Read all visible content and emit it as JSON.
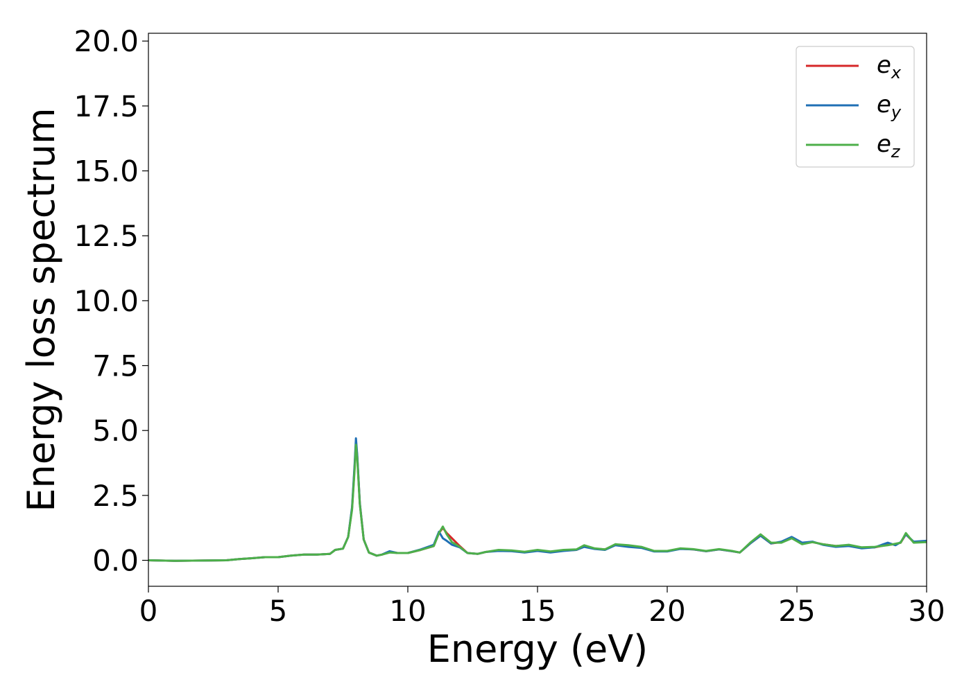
{
  "chart_data": {
    "type": "line",
    "xlabel": "Energy (eV)",
    "ylabel": "Energy loss spectrum",
    "xlim": [
      0,
      30
    ],
    "ylim": [
      -1,
      20.3
    ],
    "xticks": [
      0,
      5,
      10,
      15,
      20,
      25,
      30
    ],
    "xtick_labels": [
      "0",
      "5",
      "10",
      "15",
      "20",
      "25",
      "30"
    ],
    "yticks": [
      0,
      2.5,
      5,
      7.5,
      10,
      12.5,
      15,
      17.5,
      20
    ],
    "ytick_labels": [
      "0.0",
      "2.5",
      "5.0",
      "7.5",
      "10.0",
      "12.5",
      "15.0",
      "17.5",
      "20.0"
    ],
    "grid": false,
    "legend_position": "top-right",
    "x": [
      0,
      1,
      2,
      3,
      3.5,
      4,
      4.5,
      5,
      5.5,
      6,
      6.5,
      7,
      7.2,
      7.5,
      7.7,
      7.85,
      7.95,
      8.0,
      8.05,
      8.15,
      8.3,
      8.5,
      8.8,
      9.0,
      9.3,
      9.6,
      10.0,
      10.5,
      11.0,
      11.2,
      11.35,
      11.5,
      11.7,
      12.0,
      12.3,
      12.7,
      13.0,
      13.5,
      14.0,
      14.5,
      15.0,
      15.5,
      16.0,
      16.5,
      16.8,
      17.2,
      17.6,
      18.0,
      18.5,
      19.0,
      19.5,
      20.0,
      20.5,
      21.0,
      21.5,
      22.0,
      22.5,
      22.8,
      23.2,
      23.6,
      24.0,
      24.4,
      24.8,
      25.2,
      25.6,
      26.0,
      26.5,
      27.0,
      27.5,
      28.0,
      28.5,
      28.8,
      29.0,
      29.2,
      29.5,
      30.0
    ],
    "series": [
      {
        "name": "e_x",
        "label_base": "e",
        "label_sub": "x",
        "color": "#d62728",
        "values": [
          0.0,
          -0.02,
          -0.01,
          0.0,
          0.05,
          0.08,
          0.12,
          0.12,
          0.18,
          0.22,
          0.22,
          0.25,
          0.4,
          0.45,
          0.9,
          2.0,
          3.6,
          4.55,
          4.0,
          2.2,
          0.8,
          0.3,
          0.18,
          0.22,
          0.33,
          0.28,
          0.28,
          0.4,
          0.55,
          1.05,
          1.25,
          1.05,
          0.85,
          0.55,
          0.28,
          0.25,
          0.32,
          0.38,
          0.36,
          0.32,
          0.38,
          0.33,
          0.38,
          0.4,
          0.55,
          0.45,
          0.42,
          0.6,
          0.55,
          0.5,
          0.35,
          0.35,
          0.45,
          0.42,
          0.35,
          0.42,
          0.35,
          0.3,
          0.65,
          0.95,
          0.65,
          0.7,
          0.85,
          0.65,
          0.7,
          0.62,
          0.55,
          0.58,
          0.48,
          0.5,
          0.6,
          0.62,
          0.68,
          1.0,
          0.7,
          0.72
        ]
      },
      {
        "name": "e_y",
        "label_base": "e",
        "label_sub": "y",
        "color": "#1f6fb4",
        "values": [
          0.0,
          -0.02,
          -0.01,
          0.0,
          0.05,
          0.08,
          0.12,
          0.12,
          0.18,
          0.22,
          0.22,
          0.25,
          0.4,
          0.45,
          0.9,
          2.05,
          3.7,
          4.7,
          4.05,
          2.2,
          0.8,
          0.3,
          0.18,
          0.22,
          0.35,
          0.28,
          0.28,
          0.42,
          0.6,
          1.1,
          0.85,
          0.75,
          0.6,
          0.5,
          0.28,
          0.25,
          0.32,
          0.36,
          0.35,
          0.3,
          0.36,
          0.3,
          0.36,
          0.4,
          0.52,
          0.44,
          0.4,
          0.58,
          0.52,
          0.48,
          0.34,
          0.34,
          0.44,
          0.42,
          0.35,
          0.42,
          0.35,
          0.3,
          0.65,
          0.95,
          0.65,
          0.72,
          0.9,
          0.68,
          0.72,
          0.6,
          0.52,
          0.55,
          0.46,
          0.5,
          0.68,
          0.58,
          0.7,
          1.0,
          0.72,
          0.75
        ]
      },
      {
        "name": "e_z",
        "label_base": "e",
        "label_sub": "z",
        "color": "#4daf4a",
        "values": [
          0.0,
          -0.02,
          -0.01,
          0.0,
          0.05,
          0.08,
          0.12,
          0.12,
          0.18,
          0.22,
          0.22,
          0.25,
          0.4,
          0.45,
          0.9,
          1.95,
          3.5,
          4.45,
          3.9,
          2.15,
          0.8,
          0.3,
          0.18,
          0.22,
          0.3,
          0.28,
          0.28,
          0.4,
          0.55,
          1.05,
          1.3,
          1.0,
          0.7,
          0.52,
          0.28,
          0.25,
          0.32,
          0.4,
          0.38,
          0.33,
          0.4,
          0.34,
          0.4,
          0.42,
          0.58,
          0.46,
          0.42,
          0.62,
          0.58,
          0.52,
          0.36,
          0.36,
          0.46,
          0.43,
          0.36,
          0.43,
          0.36,
          0.3,
          0.68,
          1.0,
          0.68,
          0.68,
          0.85,
          0.62,
          0.7,
          0.62,
          0.55,
          0.6,
          0.5,
          0.52,
          0.58,
          0.64,
          0.68,
          1.05,
          0.68,
          0.7
        ]
      }
    ]
  }
}
